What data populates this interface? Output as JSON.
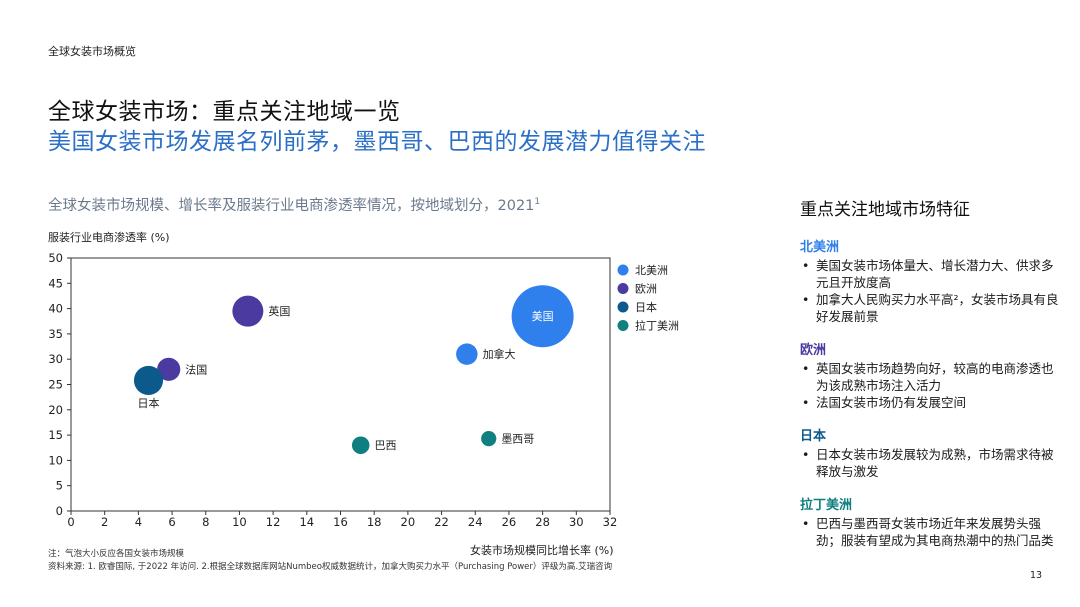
{
  "header": {
    "section_label": "全球女装市场概览",
    "title_line1": "全球女装市场：重点关注地域一览",
    "title_line2": "美国女装市场发展名列前茅，墨西哥、巴西的发展潜力值得关注"
  },
  "chart_title": "全球女装市场规模、增长率及服装行业电商渗透率情况，按地域划分，2021",
  "chart_title_sup": "1",
  "chart_data": {
    "type": "scatter",
    "subtype": "bubble",
    "xlabel": "女装市场规模同比增长率 (%)",
    "ylabel": "服装行业电商渗透率 (%)",
    "xlim": [
      0,
      32
    ],
    "ylim": [
      0,
      50
    ],
    "xticks": [
      0,
      2,
      4,
      6,
      8,
      10,
      12,
      14,
      16,
      18,
      20,
      22,
      24,
      26,
      28,
      30,
      32
    ],
    "yticks": [
      0,
      5,
      10,
      15,
      20,
      25,
      30,
      35,
      40,
      45,
      50
    ],
    "grid": false,
    "legend": [
      {
        "name": "北美洲",
        "color": "#2f80ed"
      },
      {
        "name": "欧洲",
        "color": "#4b3aa0"
      },
      {
        "name": "日本",
        "color": "#0c5a8c"
      },
      {
        "name": "拉丁美洲",
        "color": "#0f7f7f"
      }
    ],
    "points": [
      {
        "label": "美国",
        "region": "北美洲",
        "x": 28.0,
        "y": 38.5,
        "size": 100,
        "label_pos": "inside"
      },
      {
        "label": "加拿大",
        "region": "北美洲",
        "x": 23.5,
        "y": 31.0,
        "size": 12,
        "label_pos": "right"
      },
      {
        "label": "英国",
        "region": "欧洲",
        "x": 10.5,
        "y": 39.5,
        "size": 25,
        "label_pos": "right"
      },
      {
        "label": "法国",
        "region": "欧洲",
        "x": 5.8,
        "y": 28.0,
        "size": 14,
        "label_pos": "right"
      },
      {
        "label": "日本",
        "region": "日本",
        "x": 4.6,
        "y": 25.8,
        "size": 22,
        "label_pos": "below"
      },
      {
        "label": "巴西",
        "region": "拉丁美洲",
        "x": 17.2,
        "y": 13.0,
        "size": 8,
        "label_pos": "right"
      },
      {
        "label": "墨西哥",
        "region": "拉丁美洲",
        "x": 24.8,
        "y": 14.3,
        "size": 6,
        "label_pos": "right"
      }
    ]
  },
  "notes": {
    "note1": "注：气泡大小反应各国女装市场规模",
    "note2": "资料来源: 1. 欧睿国际, 于2022 年访问. 2.根据全球数据库网站Numbeo权威数据统计，加拿大购买力水平（Purchasing Power）评级为高.艾瑞咨询"
  },
  "page_number": "13",
  "panel": {
    "title": "重点关注地域市场特征",
    "regions": [
      {
        "name": "北美洲",
        "color": "#2f80ed",
        "bullets": [
          "美国女装市场体量大、增长潜力大、供求多元且开放度高",
          "加拿大人民购买力水平高²，女装市场具有良好发展前景"
        ]
      },
      {
        "name": "欧洲",
        "color": "#4b3aa0",
        "bullets": [
          "英国女装市场趋势向好，较高的电商渗透也为该成熟市场注入活力",
          "法国女装市场仍有发展空间"
        ]
      },
      {
        "name": "日本",
        "color": "#0c5a8c",
        "bullets": [
          "日本女装市场发展较为成熟，市场需求待被释放与激发"
        ]
      },
      {
        "name": "拉丁美洲",
        "color": "#0f7f7f",
        "bullets": [
          "巴西与墨西哥女装市场近年来发展势头强劲；服装有望成为其电商热潮中的热门品类"
        ]
      }
    ]
  }
}
